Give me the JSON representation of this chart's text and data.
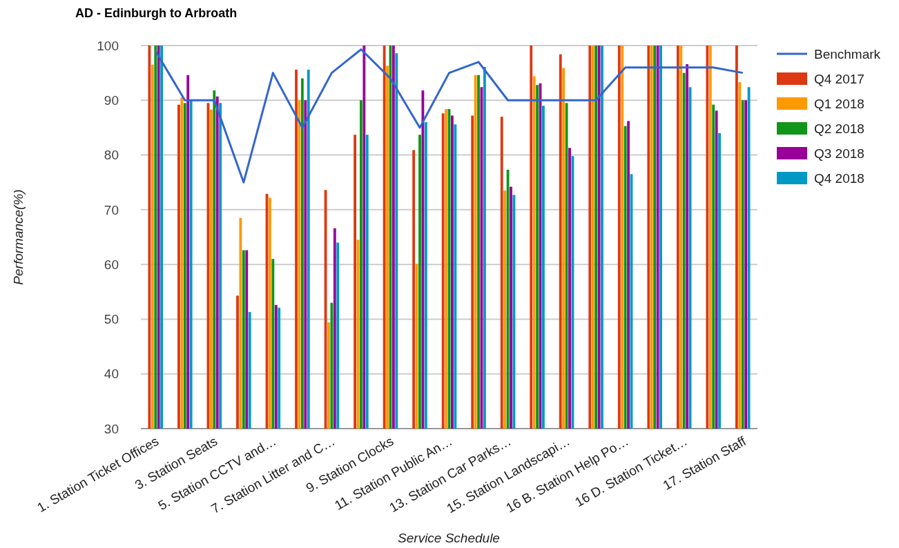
{
  "chart_data": {
    "type": "bar",
    "title": "AD - Edinburgh to Arbroath",
    "xlabel": "Service Schedule",
    "ylabel": "Performance(%)",
    "categories": [
      "1. Station Ticket Offices",
      null,
      "3. Station Seats",
      null,
      "5. Station CCTV and…",
      null,
      "7. Station Litter and C…",
      null,
      "9. Station Clocks",
      null,
      "11. Station Public An…",
      null,
      "13. Station Car Parks…",
      null,
      "15. Station Landscapi…",
      null,
      "16 B. Station Help Po…",
      null,
      "16 D. Station Ticket…",
      null,
      "17. Station Staff"
    ],
    "series": [
      {
        "name": "Benchmark",
        "type": "line",
        "color": "#3366cc",
        "values": [
          99,
          90,
          90,
          75,
          95,
          85,
          95,
          99.3,
          94,
          85,
          95,
          97,
          90,
          90,
          90,
          90,
          96,
          96,
          96,
          96,
          95
        ]
      },
      {
        "name": "Q4 2017",
        "color": "#dc3912",
        "values": [
          100,
          89.2,
          89.5,
          54.3,
          72.9,
          95.6,
          73.6,
          83.7,
          100,
          80.9,
          87.6,
          87.2,
          87,
          100,
          98.4,
          100,
          100,
          100,
          100,
          100,
          100
        ]
      },
      {
        "name": "Q1 2018",
        "color": "#ff9900",
        "values": [
          96.5,
          90.5,
          88.3,
          68.5,
          72.2,
          90,
          49.4,
          64.5,
          96.3,
          60.1,
          88.4,
          94.6,
          73.5,
          94.4,
          95.9,
          100,
          100,
          100,
          100,
          100,
          93.3
        ]
      },
      {
        "name": "Q2 2018",
        "color": "#109618",
        "values": [
          100,
          89.5,
          91.8,
          62.6,
          61,
          94,
          53,
          90,
          100,
          83.7,
          88.4,
          94.6,
          77.3,
          92.8,
          89.5,
          100,
          85.3,
          100,
          95,
          89.2,
          90
        ]
      },
      {
        "name": "Q3 2018",
        "color": "#990099",
        "values": [
          100,
          94.6,
          90.7,
          62.6,
          52.6,
          90,
          66.6,
          100,
          100,
          91.8,
          87.2,
          92.4,
          74.2,
          93.1,
          81.3,
          100,
          86.2,
          100,
          96.6,
          88.1,
          90
        ]
      },
      {
        "name": "Q4 2018",
        "color": "#0099c6",
        "values": [
          100,
          90,
          89.5,
          51.3,
          52.1,
          95.6,
          64,
          83.7,
          98.6,
          86,
          85.6,
          96.1,
          72.7,
          89,
          79.8,
          100,
          76.5,
          100,
          92.4,
          84,
          92.4
        ]
      }
    ],
    "ylim": [
      30,
      100
    ],
    "yticks": [
      30,
      40,
      50,
      60,
      70,
      80,
      90,
      100
    ],
    "grid": "y",
    "legend": "right",
    "marker": "none"
  }
}
